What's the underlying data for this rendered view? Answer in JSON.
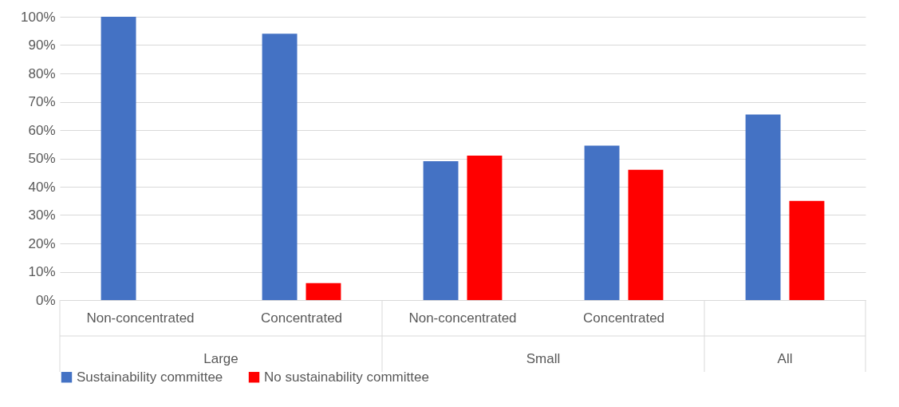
{
  "chart_data": {
    "type": "bar",
    "categories": [
      "Non-concentrated",
      "Concentrated",
      "Non-concentrated",
      "Concentrated",
      null
    ],
    "series": [
      {
        "name": "Sustainability committee",
        "color": "#4472c4",
        "values": [
          100,
          94,
          49,
          54.5,
          65.5
        ]
      },
      {
        "name": "No sustainability committee",
        "color": "#ff0000",
        "values": [
          0,
          6,
          51,
          46,
          35
        ]
      }
    ],
    "annotations": [
      "Large",
      "Small",
      "All"
    ],
    "ylim": [
      0,
      100
    ],
    "yticks": [
      {
        "value": 0,
        "label": "0%"
      },
      {
        "value": 10,
        "label": "10%"
      },
      {
        "value": 20,
        "label": "20%"
      },
      {
        "value": 30,
        "label": "30%"
      },
      {
        "value": 40,
        "label": "40%"
      },
      {
        "value": 50,
        "label": "50%"
      },
      {
        "value": 60,
        "label": "60%"
      },
      {
        "value": 70,
        "label": "70%"
      },
      {
        "value": 80,
        "label": "80%"
      },
      {
        "value": 90,
        "label": "90%"
      },
      {
        "value": 100,
        "label": "100%"
      }
    ],
    "grid": "y",
    "legend": "bottom"
  }
}
